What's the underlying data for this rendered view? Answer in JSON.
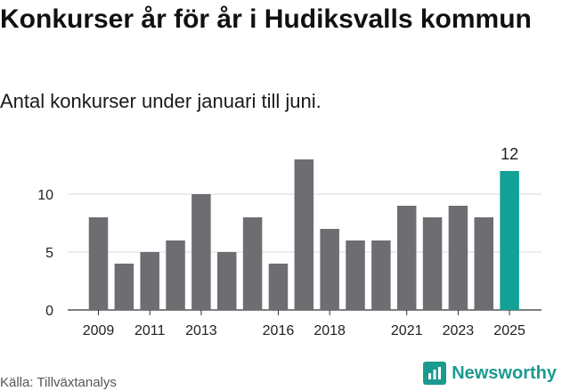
{
  "title": "Konkurser år för år i Hudiksvalls kommun",
  "subtitle": "Antal konkurser under januari till juni.",
  "source": "Källa: Tillväxtanalys",
  "brand": {
    "name": "Newsworthy",
    "icon": "newsworthy-logo-icon",
    "color": "#1b9a8f"
  },
  "chart_data": {
    "type": "bar",
    "categories": [
      "2009",
      "2010",
      "2011",
      "2012",
      "2013",
      "2014",
      "2015",
      "2016",
      "2017",
      "2018",
      "2019",
      "2020",
      "2021",
      "2022",
      "2023",
      "2024",
      "2025"
    ],
    "x_tick_labels": [
      "2009",
      "2011",
      "2013",
      "2016",
      "2018",
      "2021",
      "2023",
      "2025"
    ],
    "values": [
      8,
      4,
      5,
      6,
      10,
      5,
      8,
      4,
      13,
      7,
      6,
      6,
      9,
      8,
      9,
      8,
      12
    ],
    "ylim": [
      0,
      14
    ],
    "yticks": [
      0,
      5,
      10
    ],
    "grid": true,
    "bar_color": "#6e6d72",
    "highlight_color": "#11a196",
    "highlight_category": "2025",
    "data_labels": [
      {
        "category": "2025",
        "text": "12"
      }
    ]
  }
}
